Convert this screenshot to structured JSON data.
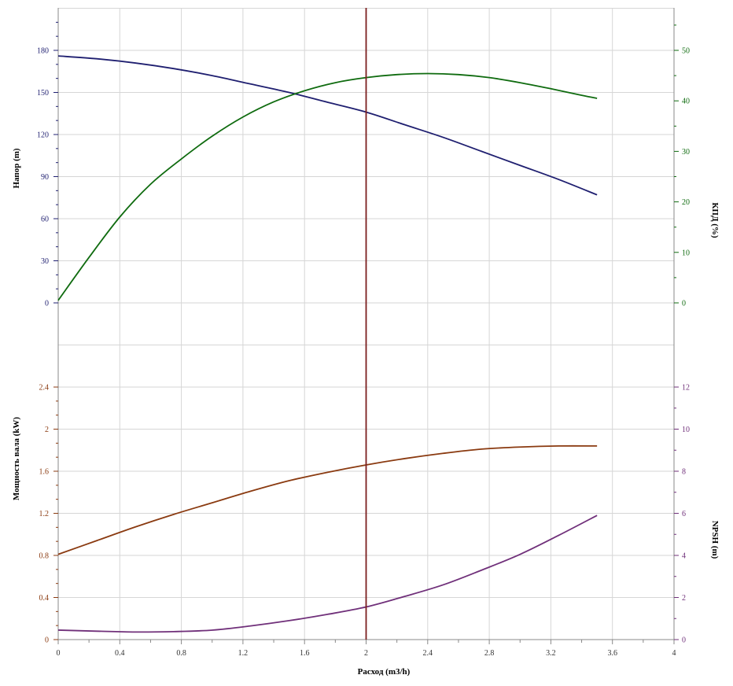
{
  "colors": {
    "head": "#1f1f70",
    "efficiency": "#0f6b0f",
    "power": "#8a3a10",
    "npsh": "#70307a",
    "marker": "#7a1e1e",
    "axis": "#888888",
    "grid": "#d6d6d6",
    "x_label": "#333333"
  },
  "chart_data": {
    "type": "line",
    "x_axis": {
      "label": "Расход (m3/h)",
      "range": [
        0,
        4
      ],
      "ticks": [
        "0",
        "0.4",
        "0.8",
        "1.2",
        "1.6",
        "2",
        "2.4",
        "2.8",
        "3.2",
        "3.6",
        "4"
      ]
    },
    "operating_point_x": 2,
    "grid": true,
    "panels": [
      {
        "name": "top",
        "left_axis": {
          "label": "Напор (m)",
          "range": [
            0,
            180
          ],
          "ticks": [
            "0",
            "30",
            "60",
            "90",
            "120",
            "150",
            "180"
          ]
        },
        "right_axis": {
          "label": "КПД (%)",
          "range": [
            0,
            50
          ],
          "ticks": [
            "0",
            "10",
            "20",
            "30",
            "40",
            "50"
          ]
        },
        "series": [
          {
            "axis": "left",
            "color_key": "head",
            "x": [
              0,
              0.25,
              0.5,
              0.75,
              1.0,
              1.25,
              1.5,
              1.75,
              2.0,
              2.25,
              2.5,
              2.75,
              3.0,
              3.25,
              3.5
            ],
            "y": [
              176,
              174,
              171,
              167,
              162,
              156,
              150,
              143,
              136,
              127,
              118,
              108,
              98,
              88,
              77
            ]
          },
          {
            "axis": "right",
            "color_key": "efficiency",
            "x": [
              0,
              0.2,
              0.4,
              0.6,
              0.8,
              1.0,
              1.2,
              1.4,
              1.6,
              1.8,
              2.0,
              2.2,
              2.4,
              2.6,
              2.8,
              3.0,
              3.2,
              3.4,
              3.5
            ],
            "y": [
              0.5,
              9,
              17,
              23.5,
              28.5,
              33,
              36.8,
              39.8,
              42,
              43.6,
              44.6,
              45.2,
              45.4,
              45.2,
              44.6,
              43.6,
              42.4,
              41.1,
              40.5
            ]
          }
        ]
      },
      {
        "name": "bottom",
        "left_axis": {
          "label": "Мощность вала (kW)",
          "range": [
            0,
            2.4
          ],
          "ticks": [
            "0",
            "0.4",
            "0.8",
            "1.2",
            "1.6",
            "2",
            "2.4"
          ]
        },
        "right_axis": {
          "label": "NPSH (m)",
          "range": [
            0,
            12
          ],
          "ticks": [
            "0",
            "2",
            "4",
            "6",
            "8",
            "10",
            "12"
          ]
        },
        "series": [
          {
            "axis": "left",
            "color_key": "power",
            "x": [
              0,
              0.25,
              0.5,
              0.75,
              1.0,
              1.25,
              1.5,
              1.75,
              2.0,
              2.25,
              2.5,
              2.75,
              3.0,
              3.25,
              3.5
            ],
            "y": [
              0.81,
              0.94,
              1.07,
              1.19,
              1.3,
              1.41,
              1.51,
              1.59,
              1.66,
              1.72,
              1.77,
              1.81,
              1.83,
              1.84,
              1.84
            ]
          },
          {
            "axis": "right",
            "color_key": "npsh",
            "x": [
              0,
              0.25,
              0.5,
              0.75,
              1.0,
              1.25,
              1.5,
              1.75,
              2.0,
              2.25,
              2.5,
              2.75,
              3.0,
              3.25,
              3.5
            ],
            "y": [
              0.45,
              0.4,
              0.36,
              0.38,
              0.45,
              0.65,
              0.9,
              1.2,
              1.55,
              2.05,
              2.6,
              3.3,
              4.05,
              4.95,
              5.9
            ]
          }
        ]
      }
    ]
  }
}
